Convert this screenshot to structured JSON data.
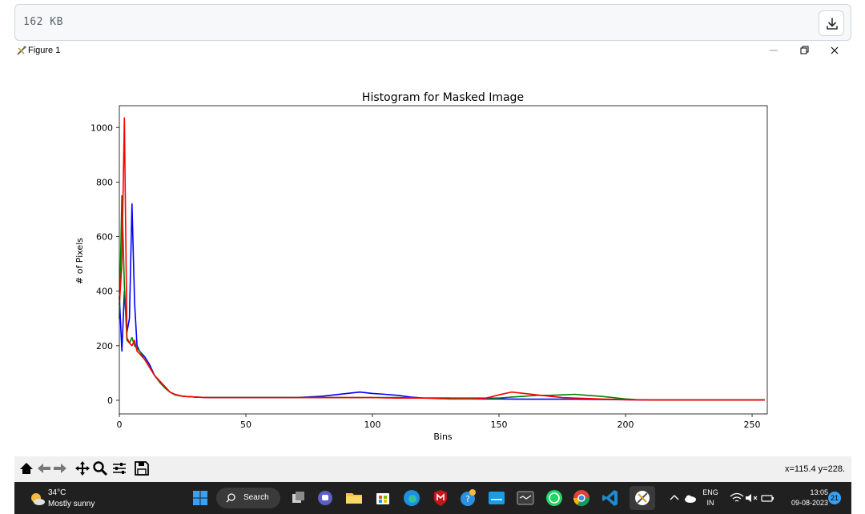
{
  "file_bar": {
    "size_text": "162  KB"
  },
  "window": {
    "title": "Figure 1"
  },
  "chart_data": {
    "type": "line",
    "title": "Histogram for Masked Image",
    "xlabel": "Bins",
    "ylabel": "# of Pixels",
    "xlim": [
      0,
      256
    ],
    "ylim": [
      -50,
      1080
    ],
    "x_ticks": [
      0,
      50,
      100,
      150,
      200,
      250
    ],
    "y_ticks": [
      0,
      200,
      400,
      600,
      800,
      1000
    ],
    "grid": false,
    "series": [
      {
        "color": "#0000ff",
        "x": [
          0,
          1,
          2,
          3,
          4,
          5,
          6,
          7,
          8,
          10,
          12,
          14,
          16,
          18,
          20,
          22,
          25,
          30,
          35,
          40,
          50,
          60,
          70,
          80,
          85,
          90,
          95,
          100,
          105,
          110,
          115,
          120,
          130,
          140,
          150,
          160,
          170,
          180,
          190,
          200,
          210,
          220,
          230,
          240,
          255
        ],
        "y": [
          380,
          180,
          400,
          250,
          300,
          720,
          360,
          200,
          180,
          160,
          130,
          90,
          70,
          50,
          30,
          20,
          15,
          12,
          10,
          10,
          10,
          10,
          10,
          15,
          20,
          25,
          30,
          25,
          22,
          18,
          12,
          8,
          8,
          5,
          5,
          4,
          4,
          4,
          3,
          2,
          1,
          1,
          1,
          1,
          1
        ]
      },
      {
        "color": "#008000",
        "x": [
          0,
          1,
          2,
          3,
          4,
          5,
          6,
          7,
          8,
          10,
          12,
          14,
          16,
          18,
          20,
          22,
          25,
          30,
          35,
          40,
          50,
          60,
          70,
          80,
          90,
          100,
          110,
          120,
          130,
          140,
          150,
          155,
          160,
          165,
          170,
          175,
          180,
          185,
          190,
          195,
          200,
          205,
          210,
          220,
          230,
          240,
          255
        ],
        "y": [
          300,
          750,
          420,
          220,
          210,
          230,
          200,
          190,
          180,
          150,
          120,
          90,
          65,
          45,
          30,
          20,
          15,
          12,
          10,
          10,
          10,
          10,
          10,
          10,
          10,
          10,
          10,
          8,
          8,
          8,
          8,
          12,
          15,
          18,
          18,
          20,
          22,
          18,
          15,
          10,
          5,
          2,
          1,
          1,
          1,
          1,
          1
        ]
      },
      {
        "color": "#ff0000",
        "x": [
          0,
          1,
          2,
          3,
          4,
          5,
          6,
          7,
          8,
          10,
          12,
          14,
          16,
          18,
          20,
          22,
          25,
          30,
          35,
          40,
          50,
          60,
          70,
          80,
          90,
          100,
          110,
          120,
          130,
          140,
          145,
          150,
          155,
          160,
          165,
          170,
          175,
          180,
          190,
          200,
          210,
          220,
          230,
          240,
          255
        ],
        "y": [
          350,
          500,
          1035,
          230,
          210,
          200,
          220,
          180,
          170,
          150,
          120,
          90,
          70,
          50,
          30,
          22,
          15,
          12,
          10,
          10,
          10,
          10,
          10,
          10,
          10,
          10,
          8,
          8,
          5,
          5,
          8,
          20,
          30,
          25,
          20,
          15,
          10,
          8,
          5,
          2,
          1,
          1,
          1,
          1,
          1
        ]
      }
    ]
  },
  "toolbar": {
    "coords_text": "x=115.4 y=228."
  },
  "taskbar": {
    "temperature": "34°C",
    "condition": "Mostly sunny",
    "search_label": "Search",
    "language": "ENG",
    "region": "IN",
    "time": "13:05",
    "date": "09-08-2023",
    "notification_count": "21"
  }
}
